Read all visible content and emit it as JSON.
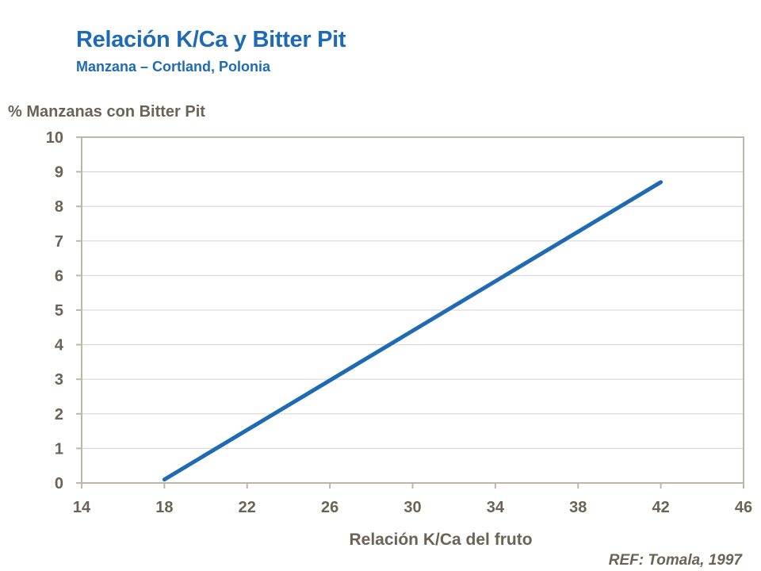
{
  "header": {
    "title": "Relación K/Ca y Bitter Pit",
    "subtitle": "Manzana – Cortland, Polonia"
  },
  "reference": "REF: Tomala, 1997",
  "colors": {
    "title": "#1F6BB3",
    "line": "#1F6BB3",
    "axis_text": "#6b6356",
    "grid": "#d9d9d9",
    "frame": "#bfb6a8"
  },
  "chart_data": {
    "type": "line",
    "title": "",
    "xlabel": "Relación K/Ca del fruto",
    "ylabel": "% Manzanas con Bitter Pit",
    "xlim": [
      14,
      46
    ],
    "ylim": [
      0,
      10
    ],
    "xticks": [
      14,
      18,
      22,
      26,
      30,
      34,
      38,
      42,
      46
    ],
    "yticks": [
      0,
      1,
      2,
      3,
      4,
      5,
      6,
      7,
      8,
      9,
      10
    ],
    "grid": true,
    "series": [
      {
        "name": "Bitter Pit",
        "x": [
          18,
          42
        ],
        "y": [
          0.1,
          8.7
        ]
      }
    ]
  }
}
